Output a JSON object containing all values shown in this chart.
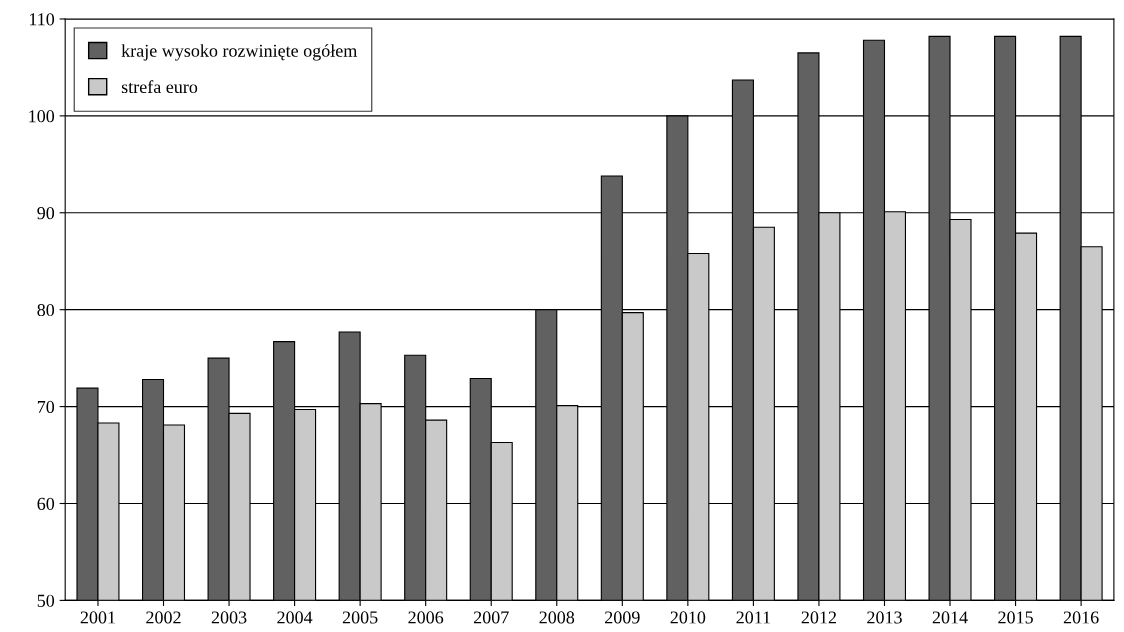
{
  "chart_data": {
    "type": "bar",
    "categories": [
      "2001",
      "2002",
      "2003",
      "2004",
      "2005",
      "2006",
      "2007",
      "2008",
      "2009",
      "2010",
      "2011",
      "2012",
      "2013",
      "2014",
      "2015",
      "2016"
    ],
    "series": [
      {
        "name": "kraje wysoko rozwinięte ogółem",
        "color": "#616161",
        "values": [
          71.9,
          72.8,
          75.0,
          76.7,
          77.7,
          75.3,
          72.9,
          80.0,
          93.8,
          100.0,
          103.7,
          106.5,
          107.8,
          108.2,
          108.2,
          108.2
        ]
      },
      {
        "name": "strefa euro",
        "color": "#c9c9c9",
        "values": [
          68.3,
          68.1,
          69.3,
          69.7,
          70.3,
          68.6,
          66.3,
          70.1,
          79.7,
          85.8,
          88.5,
          90.0,
          90.1,
          89.3,
          87.9,
          86.5
        ]
      }
    ],
    "ylim": [
      50,
      110
    ],
    "yticks": [
      50,
      60,
      70,
      80,
      90,
      100,
      110
    ],
    "grid": "y",
    "legend": "top left"
  }
}
